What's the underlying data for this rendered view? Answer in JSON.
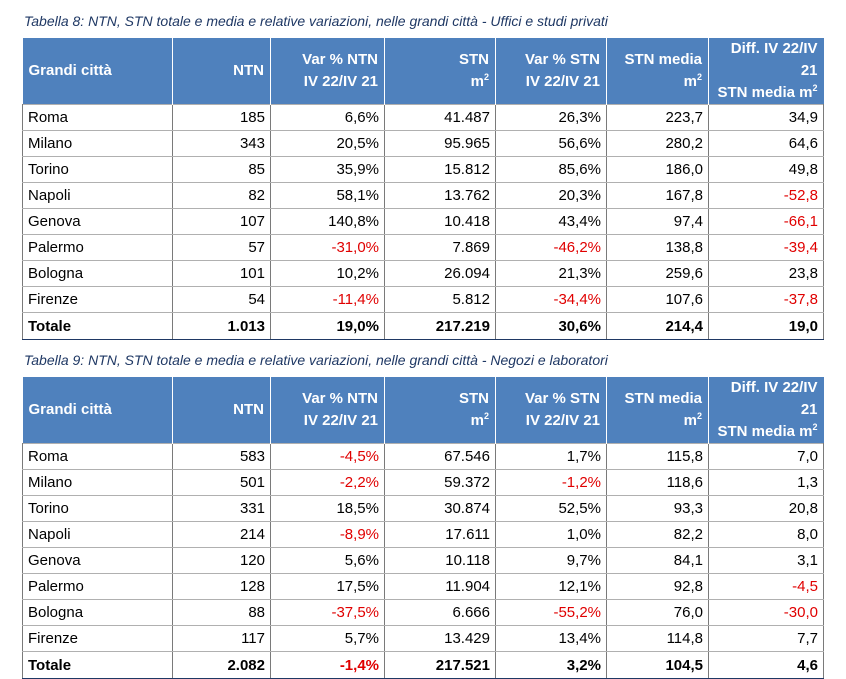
{
  "table8": {
    "caption": "Tabella 8: NTN, STN totale e media e relative variazioni, nelle grandi città - Uffici e studi privati",
    "headers": {
      "city": "Grandi città",
      "ntn": "NTN",
      "var_ntn_1": "Var % NTN",
      "var_ntn_2": "IV 22/IV 21",
      "stn_1": "STN",
      "stn_2": "m",
      "var_stn_1": "Var % STN",
      "var_stn_2": "IV 22/IV 21",
      "stn_media_1": "STN media",
      "stn_media_2": "m",
      "diff_1": "Diff. IV 22/IV 21",
      "diff_2": "STN media m",
      "sq": "2"
    },
    "rows": [
      {
        "city": "Roma",
        "ntn": "185",
        "var_ntn": "6,6%",
        "stn": "41.487",
        "var_stn": "26,3%",
        "stn_media": "223,7",
        "diff": "34,9"
      },
      {
        "city": "Milano",
        "ntn": "343",
        "var_ntn": "20,5%",
        "stn": "95.965",
        "var_stn": "56,6%",
        "stn_media": "280,2",
        "diff": "64,6"
      },
      {
        "city": "Torino",
        "ntn": "85",
        "var_ntn": "35,9%",
        "stn": "15.812",
        "var_stn": "85,6%",
        "stn_media": "186,0",
        "diff": "49,8"
      },
      {
        "city": "Napoli",
        "ntn": "82",
        "var_ntn": "58,1%",
        "stn": "13.762",
        "var_stn": "20,3%",
        "stn_media": "167,8",
        "diff": "-52,8"
      },
      {
        "city": "Genova",
        "ntn": "107",
        "var_ntn": "140,8%",
        "stn": "10.418",
        "var_stn": "43,4%",
        "stn_media": "97,4",
        "diff": "-66,1"
      },
      {
        "city": "Palermo",
        "ntn": "57",
        "var_ntn": "-31,0%",
        "stn": "7.869",
        "var_stn": "-46,2%",
        "stn_media": "138,8",
        "diff": "-39,4"
      },
      {
        "city": "Bologna",
        "ntn": "101",
        "var_ntn": "10,2%",
        "stn": "26.094",
        "var_stn": "21,3%",
        "stn_media": "259,6",
        "diff": "23,8"
      },
      {
        "city": "Firenze",
        "ntn": "54",
        "var_ntn": "-11,4%",
        "stn": "5.812",
        "var_stn": "-34,4%",
        "stn_media": "107,6",
        "diff": "-37,8"
      }
    ],
    "total": {
      "city": "Totale",
      "ntn": "1.013",
      "var_ntn": "19,0%",
      "stn": "217.219",
      "var_stn": "30,6%",
      "stn_media": "214,4",
      "diff": "19,0"
    }
  },
  "table9": {
    "caption": "Tabella 9: NTN, STN totale e media e relative variazioni, nelle grandi città - Negozi e laboratori",
    "headers": {
      "city": "Grandi città",
      "ntn": "NTN",
      "var_ntn_1": "Var % NTN",
      "var_ntn_2": "IV 22/IV 21",
      "stn_1": "STN",
      "stn_2": "m",
      "var_stn_1": "Var % STN",
      "var_stn_2": "IV 22/IV 21",
      "stn_media_1": "STN media",
      "stn_media_2": "m",
      "diff_1": "Diff. IV 22/IV 21",
      "diff_2": "STN media m",
      "sq": "2"
    },
    "rows": [
      {
        "city": "Roma",
        "ntn": "583",
        "var_ntn": "-4,5%",
        "stn": "67.546",
        "var_stn": "1,7%",
        "stn_media": "115,8",
        "diff": "7,0"
      },
      {
        "city": "Milano",
        "ntn": "501",
        "var_ntn": "-2,2%",
        "stn": "59.372",
        "var_stn": "-1,2%",
        "stn_media": "118,6",
        "diff": "1,3"
      },
      {
        "city": "Torino",
        "ntn": "331",
        "var_ntn": "18,5%",
        "stn": "30.874",
        "var_stn": "52,5%",
        "stn_media": "93,3",
        "diff": "20,8"
      },
      {
        "city": "Napoli",
        "ntn": "214",
        "var_ntn": "-8,9%",
        "stn": "17.611",
        "var_stn": "1,0%",
        "stn_media": "82,2",
        "diff": "8,0"
      },
      {
        "city": "Genova",
        "ntn": "120",
        "var_ntn": "5,6%",
        "stn": "10.118",
        "var_stn": "9,7%",
        "stn_media": "84,1",
        "diff": "3,1"
      },
      {
        "city": "Palermo",
        "ntn": "128",
        "var_ntn": "17,5%",
        "stn": "11.904",
        "var_stn": "12,1%",
        "stn_media": "92,8",
        "diff": "-4,5"
      },
      {
        "city": "Bologna",
        "ntn": "88",
        "var_ntn": "-37,5%",
        "stn": "6.666",
        "var_stn": "-55,2%",
        "stn_media": "76,0",
        "diff": "-30,0"
      },
      {
        "city": "Firenze",
        "ntn": "117",
        "var_ntn": "5,7%",
        "stn": "13.429",
        "var_stn": "13,4%",
        "stn_media": "114,8",
        "diff": "7,7"
      }
    ],
    "total": {
      "city": "Totale",
      "ntn": "2.082",
      "var_ntn": "-1,4%",
      "stn": "217.521",
      "var_stn": "3,2%",
      "stn_media": "104,5",
      "diff": "4,6"
    }
  }
}
